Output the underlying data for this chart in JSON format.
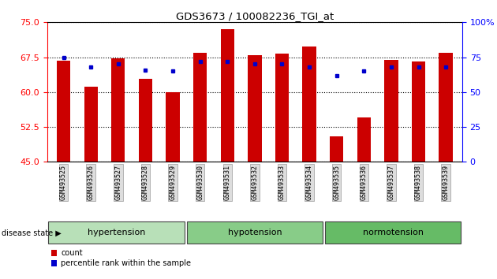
{
  "title": "GDS3673 / 100082236_TGI_at",
  "samples": [
    "GSM493525",
    "GSM493526",
    "GSM493527",
    "GSM493528",
    "GSM493529",
    "GSM493530",
    "GSM493531",
    "GSM493532",
    "GSM493533",
    "GSM493534",
    "GSM493535",
    "GSM493536",
    "GSM493537",
    "GSM493538",
    "GSM493539"
  ],
  "count_values": [
    66.8,
    61.1,
    67.2,
    62.8,
    60.0,
    68.5,
    73.5,
    68.0,
    68.3,
    69.8,
    50.5,
    54.5,
    67.0,
    66.5,
    68.5
  ],
  "percentile_values": [
    75,
    68,
    70,
    66,
    65,
    72,
    72,
    70,
    70,
    68,
    62,
    65,
    68,
    68,
    68
  ],
  "ylim_left": [
    45,
    75
  ],
  "ylim_right": [
    0,
    100
  ],
  "yticks_left": [
    45,
    52.5,
    60,
    67.5,
    75
  ],
  "yticks_right": [
    0,
    25,
    50,
    75,
    100
  ],
  "bar_color": "#cc0000",
  "dot_color": "#0000cc",
  "groups": [
    {
      "label": "hypertension",
      "start": 0,
      "end": 5,
      "color": "#b8e0b8"
    },
    {
      "label": "hypotension",
      "start": 5,
      "end": 10,
      "color": "#88cc88"
    },
    {
      "label": "normotension",
      "start": 10,
      "end": 15,
      "color": "#66bb66"
    }
  ],
  "disease_state_label": "disease state",
  "legend_count_label": "count",
  "legend_percentile_label": "percentile rank within the sample",
  "bar_width": 0.5,
  "fig_width": 6.3,
  "fig_height": 3.54,
  "dpi": 100
}
